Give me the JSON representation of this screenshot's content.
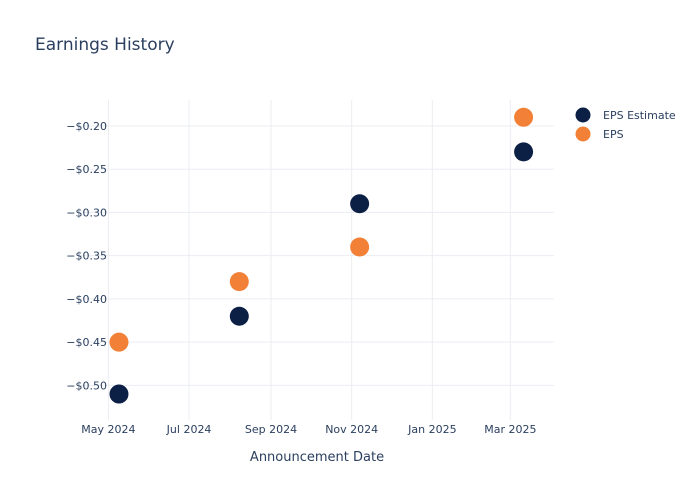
{
  "chart_data": {
    "type": "scatter",
    "title": "Earnings History",
    "xlabel": "Announcement Date",
    "ylabel": "",
    "x_ticks": [
      "May 2024",
      "Jul 2024",
      "Sep 2024",
      "Nov 2024",
      "Jan 2025",
      "Mar 2025"
    ],
    "y_ticks": [
      "−$0.20",
      "−$0.25",
      "−$0.30",
      "−$0.35",
      "−$0.40",
      "−$0.45",
      "−$0.50"
    ],
    "y_tick_values": [
      -0.2,
      -0.25,
      -0.3,
      -0.35,
      -0.4,
      -0.45,
      -0.5
    ],
    "x_tick_dates": [
      "2024-05-01",
      "2024-07-01",
      "2024-09-01",
      "2024-11-01",
      "2025-01-01",
      "2025-03-01"
    ],
    "xlim": [
      "2024-04-08",
      "2025-04-03"
    ],
    "ylim": [
      -0.54,
      -0.17
    ],
    "grid": true,
    "legend_position": "top-right",
    "series": [
      {
        "name": "EPS Estimate",
        "color": "#0c1f44",
        "points": [
          {
            "x": "2024-05-09",
            "y": -0.51
          },
          {
            "x": "2024-08-08",
            "y": -0.42
          },
          {
            "x": "2024-11-07",
            "y": -0.29
          },
          {
            "x": "2025-03-11",
            "y": -0.23
          }
        ]
      },
      {
        "name": "EPS",
        "color": "#f28137",
        "points": [
          {
            "x": "2024-05-09",
            "y": -0.45
          },
          {
            "x": "2024-08-08",
            "y": -0.38
          },
          {
            "x": "2024-11-07",
            "y": -0.34
          },
          {
            "x": "2025-03-11",
            "y": -0.19
          }
        ]
      }
    ]
  }
}
